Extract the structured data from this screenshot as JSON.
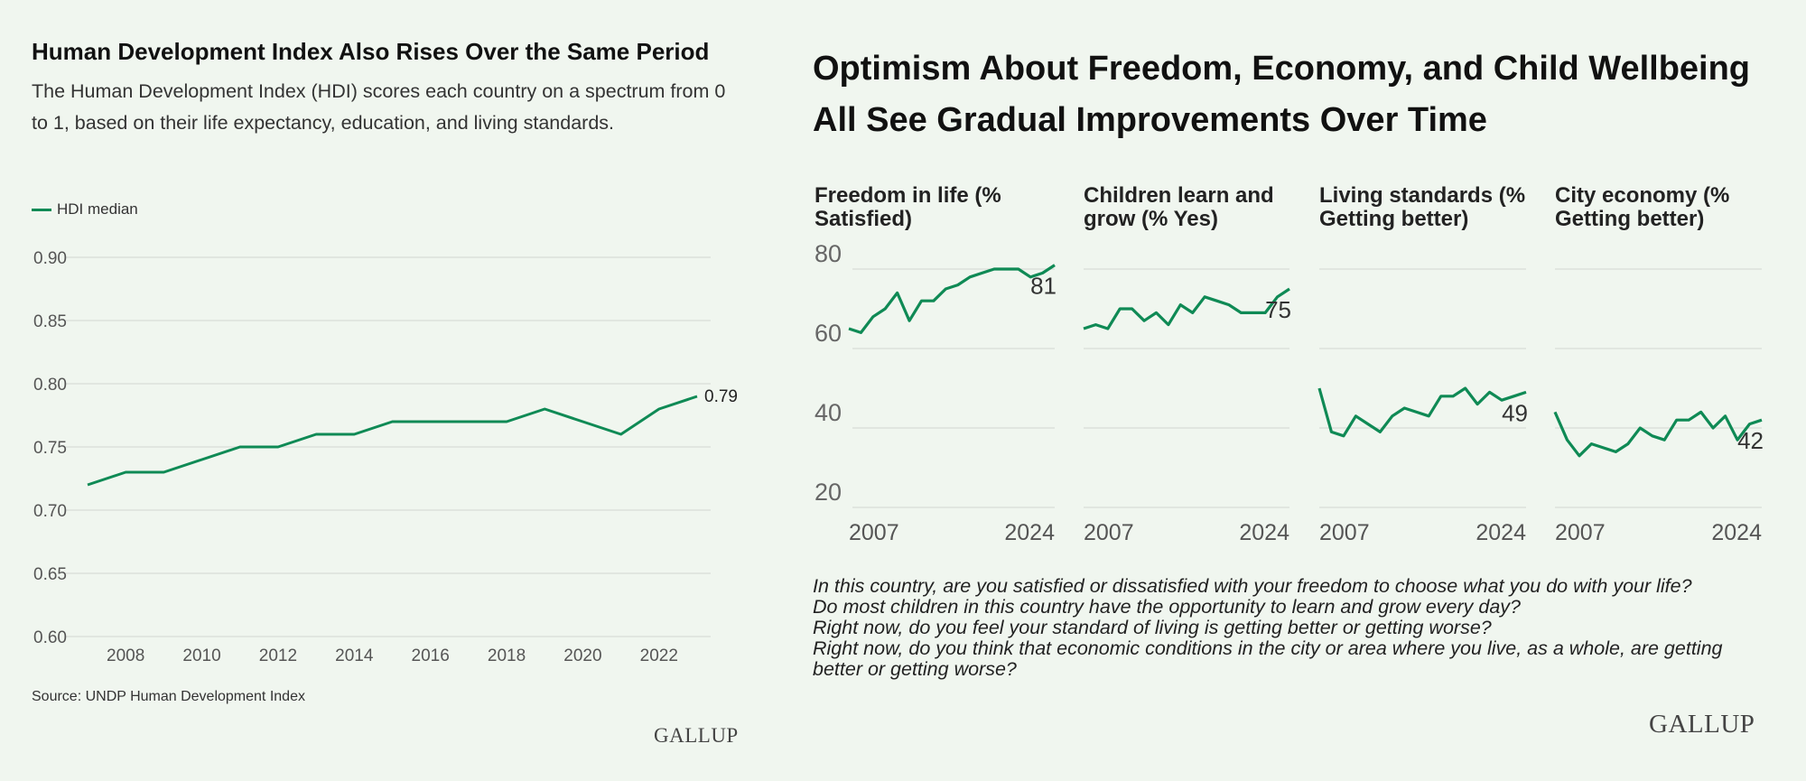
{
  "left": {
    "title": "Human Development Index Also Rises Over the Same Period",
    "subtitle": "The Human Development Index (HDI) scores each country on a spectrum from 0 to 1, based on their life expectancy, education, and living standards.",
    "legend_label": "HDI median",
    "source": "Source: UNDP Human Development Index",
    "brand": "GALLUP"
  },
  "right": {
    "title": "Optimism About Freedom, Economy, and Child Wellbeing All See Gradual Improvements Over Time",
    "notes": [
      "In this country, are you satisfied or dissatisfied with your freedom to choose what you do with your life?",
      "Do most children in this country have the opportunity to learn and grow every day?",
      "Right now, do you feel your standard of living is getting better or getting worse?",
      "Right now, do you think that economic conditions in the city or area where you live, as a whole, are getting better or getting worse?"
    ],
    "brand": "GALLUP"
  },
  "colors": {
    "line": "#0f8a55",
    "grid": "#d8ddd8",
    "background": "#f0f6ef"
  },
  "chart_data": [
    {
      "type": "line",
      "title": "Human Development Index Also Rises Over the Same Period",
      "series": [
        {
          "name": "HDI median",
          "x": [
            2007,
            2008,
            2009,
            2010,
            2011,
            2012,
            2013,
            2014,
            2015,
            2016,
            2017,
            2018,
            2019,
            2020,
            2021,
            2022,
            2023
          ],
          "values": [
            0.72,
            0.73,
            0.73,
            0.74,
            0.75,
            0.75,
            0.76,
            0.76,
            0.77,
            0.77,
            0.77,
            0.77,
            0.78,
            0.77,
            0.76,
            0.78,
            0.79
          ]
        }
      ],
      "end_label": "0.79",
      "xticks": [
        "2008",
        "2010",
        "2012",
        "2014",
        "2016",
        "2018",
        "2020",
        "2022"
      ],
      "yticks": [
        "0.60",
        "0.65",
        "0.70",
        "0.75",
        "0.80",
        "0.85",
        "0.90"
      ],
      "xlim": [
        2007,
        2023
      ],
      "ylim": [
        0.6,
        0.9
      ],
      "grid": true,
      "legend": "top-left"
    },
    {
      "type": "line",
      "small_multiples": true,
      "x": [
        2007,
        2008,
        2009,
        2010,
        2011,
        2012,
        2013,
        2014,
        2015,
        2016,
        2017,
        2018,
        2019,
        2020,
        2021,
        2022,
        2023,
        2024
      ],
      "ylim": [
        20,
        80
      ],
      "yticks": [
        "20",
        "40",
        "60",
        "80"
      ],
      "xticks": [
        "2007",
        "2024"
      ],
      "grid": true,
      "panels": [
        {
          "title": "Freedom in life (% Satisfied)",
          "values": [
            65,
            64,
            68,
            70,
            74,
            67,
            72,
            72,
            75,
            76,
            78,
            79,
            80,
            80,
            80,
            78,
            79,
            81
          ],
          "end_label": "81"
        },
        {
          "title": "Children learn and grow (% Yes)",
          "values": [
            65,
            66,
            65,
            70,
            70,
            67,
            69,
            66,
            71,
            69,
            73,
            72,
            71,
            69,
            69,
            69,
            73,
            75
          ],
          "end_label": "75"
        },
        {
          "title": "Living standards (% Getting better)",
          "values": [
            50,
            39,
            38,
            43,
            41,
            39,
            43,
            45,
            44,
            43,
            48,
            48,
            50,
            46,
            49,
            47,
            48,
            49
          ],
          "end_label": "49"
        },
        {
          "title": "City economy (% Getting better)",
          "values": [
            44,
            37,
            33,
            36,
            35,
            34,
            36,
            40,
            38,
            37,
            42,
            42,
            44,
            40,
            43,
            37,
            41,
            42
          ],
          "end_label": "42"
        }
      ]
    }
  ]
}
